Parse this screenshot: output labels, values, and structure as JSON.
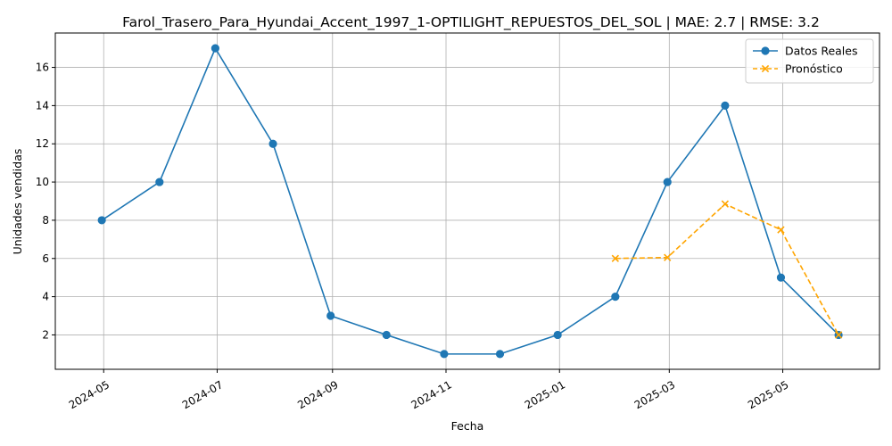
{
  "chart_data": {
    "type": "line",
    "title": "Farol_Trasero_Para_Hyundai_Accent_1997_1-OPTILIGHT_REPUESTOS_DEL_SOL | MAE: 2.7 | RMSE: 3.2",
    "xlabel": "Fecha",
    "ylabel": "Unidades vendidas",
    "grid": true,
    "legend_position": "top-right",
    "x_ticks": [
      "2024-05",
      "2024-07",
      "2024-09",
      "2024-11",
      "2025-01",
      "2025-03",
      "2025-05"
    ],
    "y_ticks": [
      2,
      4,
      6,
      8,
      10,
      12,
      14,
      16
    ],
    "ylim": [
      0.2,
      17.8
    ],
    "xlim": [
      "2024-04-05",
      "2025-06-22"
    ],
    "series": [
      {
        "name": "Datos Reales",
        "color": "#1f77b4",
        "marker": "circle",
        "linestyle": "solid",
        "x": [
          "2024-04-30",
          "2024-05-31",
          "2024-06-30",
          "2024-07-31",
          "2024-08-31",
          "2024-09-30",
          "2024-10-31",
          "2024-11-30",
          "2024-12-31",
          "2025-01-31",
          "2025-02-28",
          "2025-03-31",
          "2025-04-30",
          "2025-05-31"
        ],
        "y": [
          8,
          10,
          17,
          12,
          3,
          2,
          1,
          1,
          2,
          4,
          10,
          14,
          5,
          2
        ]
      },
      {
        "name": "Pronóstico",
        "color": "#ffa500",
        "marker": "x",
        "linestyle": "dashed",
        "x": [
          "2025-01-31",
          "2025-02-28",
          "2025-03-31",
          "2025-04-30",
          "2025-05-31"
        ],
        "y": [
          6.0,
          6.05,
          8.85,
          7.5,
          2.0
        ]
      }
    ]
  }
}
